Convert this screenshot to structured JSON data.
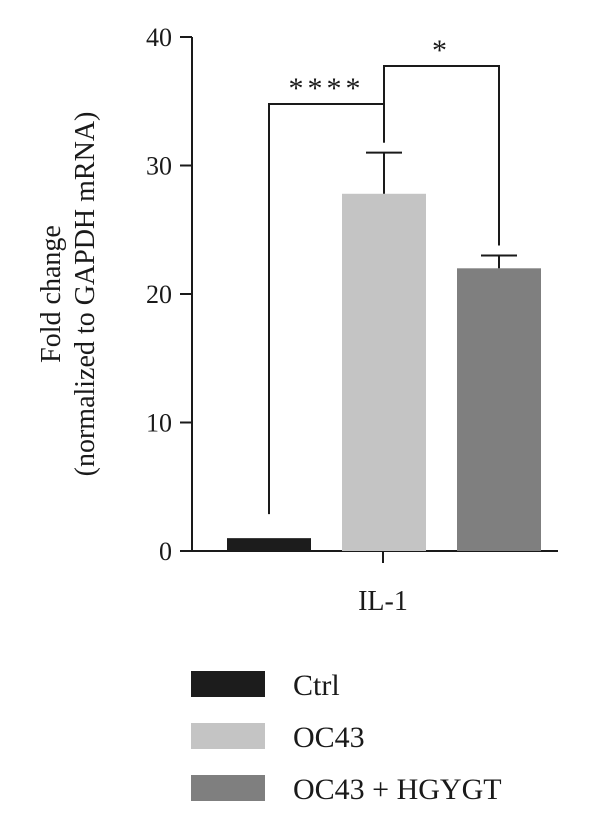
{
  "chart_data": {
    "type": "bar",
    "title": "",
    "ylabel_line1": "Fold change",
    "ylabel_line2": "(normalized to GAPDH mRNA)",
    "xlabel": "",
    "category": "IL-1",
    "ylim": [
      0,
      40
    ],
    "yticks": [
      0,
      10,
      20,
      30,
      40
    ],
    "series": [
      {
        "name": "Ctrl",
        "value": 1.0,
        "error": 0,
        "color": "#1c1c1c"
      },
      {
        "name": "OC43",
        "value": 27.8,
        "error": 3.2,
        "color": "#c4c4c4"
      },
      {
        "name": "OC43 + HGYGT",
        "value": 22.0,
        "error": 1.0,
        "color": "#7f7f7f"
      }
    ],
    "significance": [
      {
        "from": 0,
        "to": 1,
        "label": "****"
      },
      {
        "from": 1,
        "to": 2,
        "label": "*"
      }
    ],
    "legend_placement": "bottom",
    "grid": false
  }
}
